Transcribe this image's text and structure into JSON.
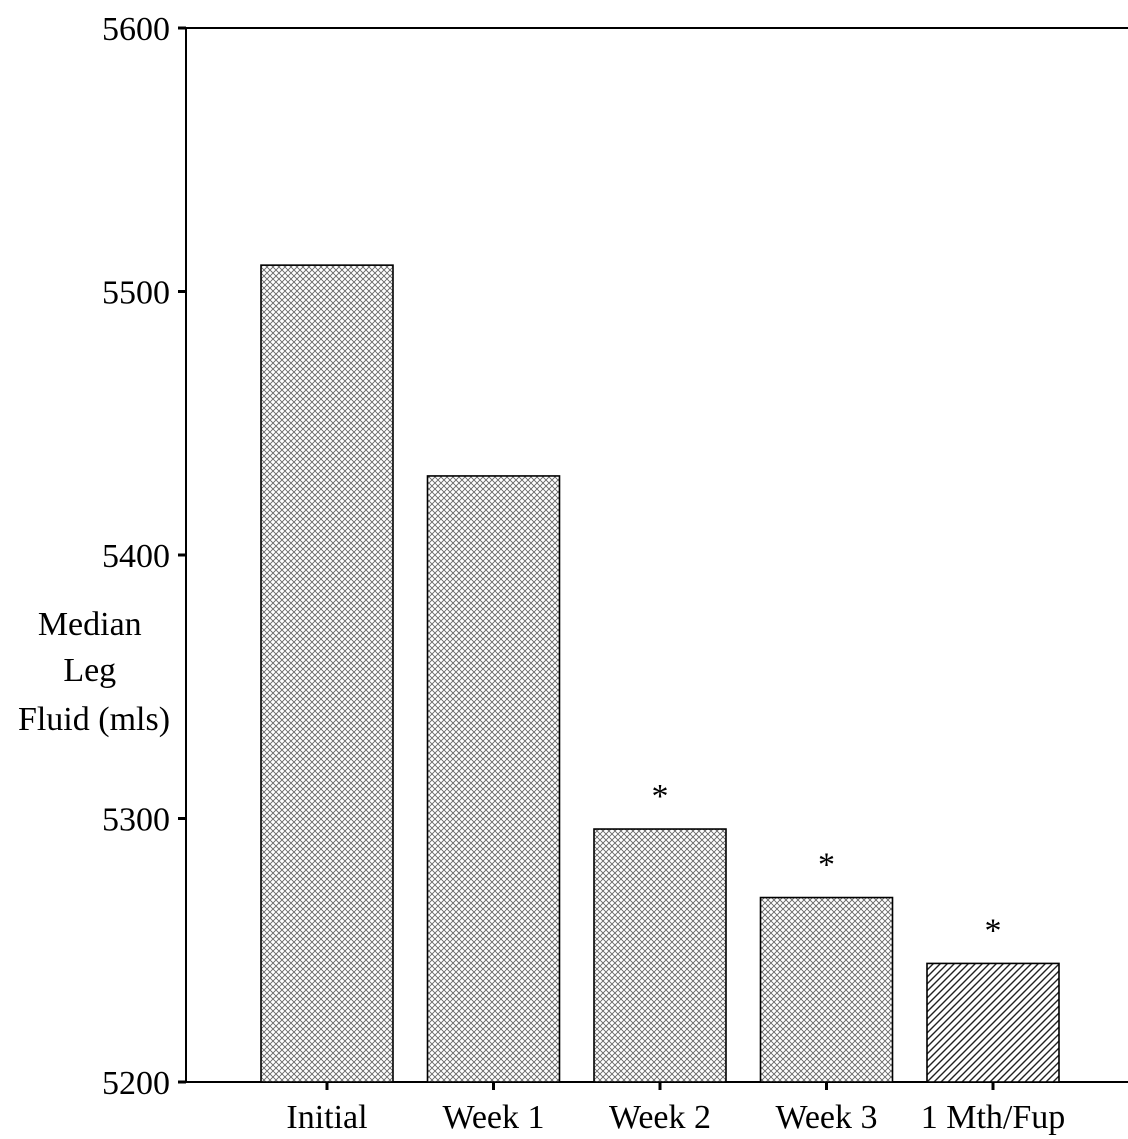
{
  "chart_data": {
    "type": "bar",
    "title": "",
    "xlabel": "",
    "ylabel_lines": [
      "Median",
      "Leg",
      "Fluid (mls)"
    ],
    "categories": [
      "Initial",
      "Week 1",
      "Week 2",
      "Week 3",
      "1 Mth/Fup"
    ],
    "values": [
      5510,
      5430,
      5296,
      5270,
      5245
    ],
    "significance": [
      "",
      "",
      "*",
      "*",
      "*"
    ],
    "patterns": [
      "crosshatch",
      "crosshatch",
      "crosshatch",
      "crosshatch",
      "diagonal"
    ],
    "ylim": [
      5200,
      5600
    ],
    "yticks": [
      5200,
      5300,
      5400,
      5500,
      5600
    ],
    "grid": false,
    "legend": "none",
    "colors": {
      "bar_fill": "#ffffff",
      "hatch": "#555555",
      "axis": "#000000"
    }
  }
}
